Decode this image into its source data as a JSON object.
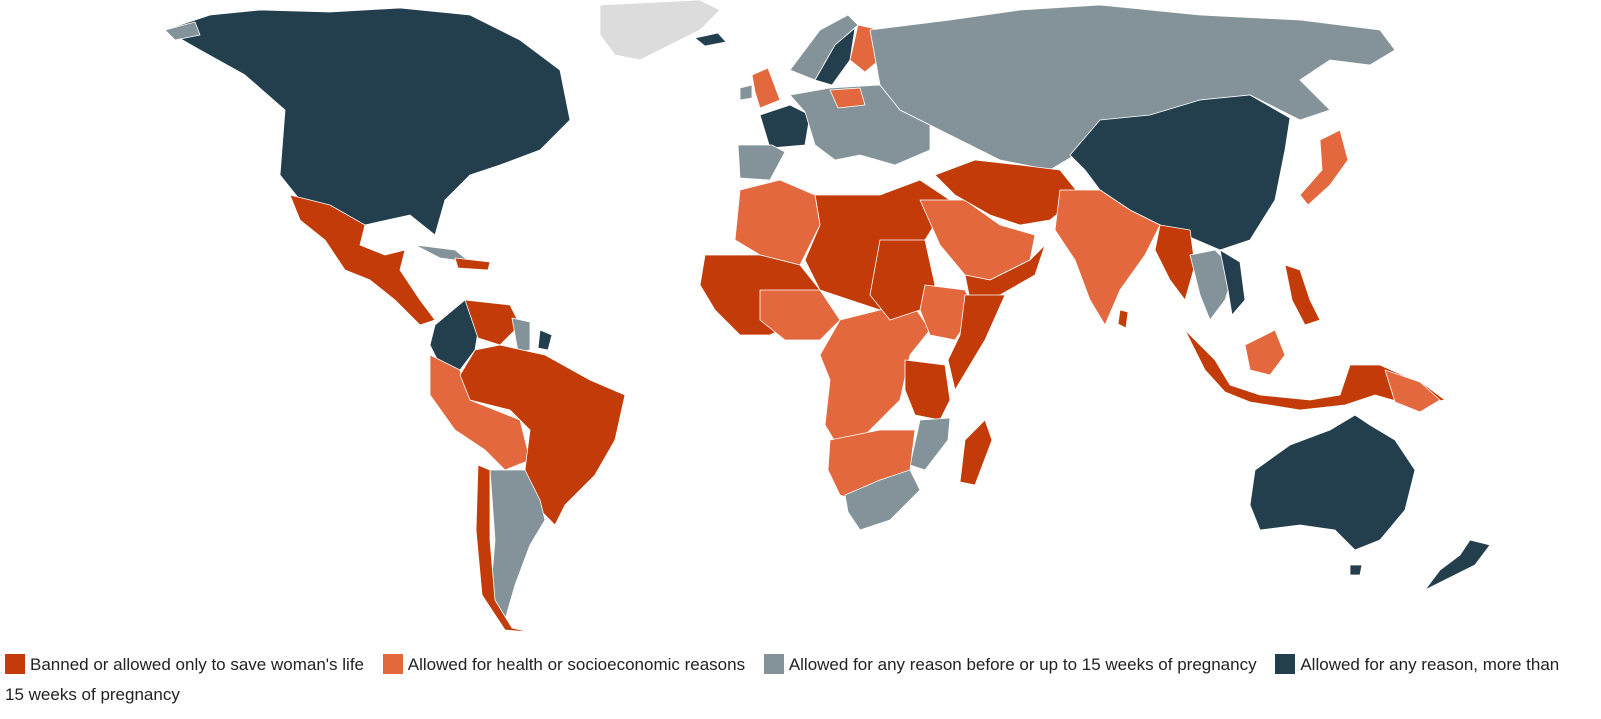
{
  "colors": {
    "banned": "#c23b08",
    "health": "#e4683d",
    "fifteen_weeks": "#84939a",
    "more_than_15": "#233f4d",
    "no_data": "#dcdcdc",
    "ocean": "#ffffff"
  },
  "legend": [
    {
      "key": "banned",
      "label": "Banned or allowed only to save woman's life"
    },
    {
      "key": "health",
      "label": "Allowed for health or socioeconomic reasons"
    },
    {
      "key": "fifteen_weeks",
      "label": "Allowed for any reason before or up to 15 weeks of pregnancy"
    },
    {
      "key": "more_than_15",
      "label": "Allowed for any reason, more than 15 weeks of pregnancy"
    }
  ]
}
